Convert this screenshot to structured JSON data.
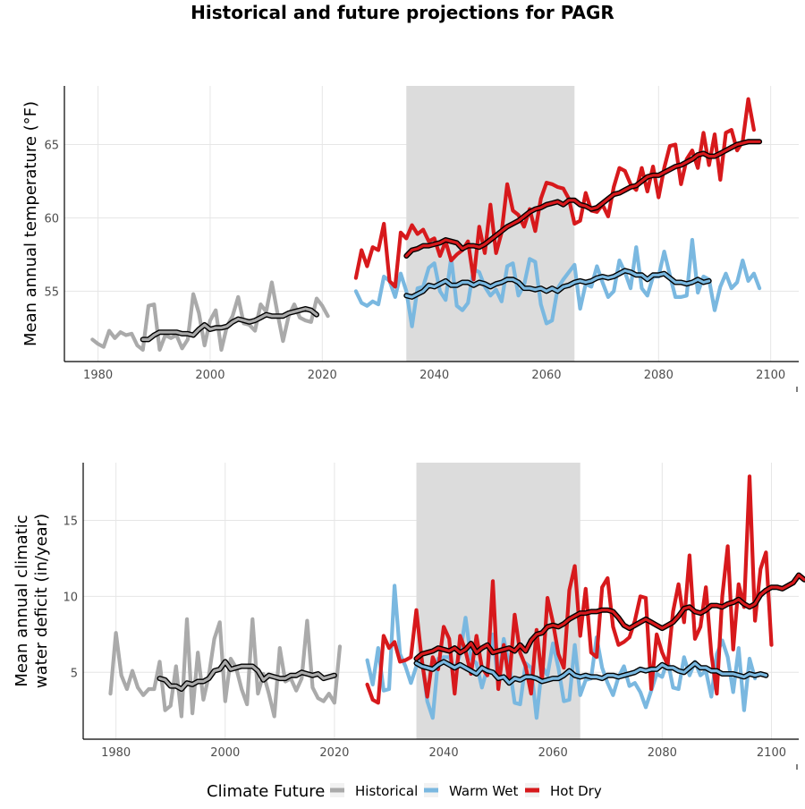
{
  "title": "Historical and future projections for PAGR",
  "legend": {
    "title": "Climate Future",
    "items": [
      {
        "label": "Historical",
        "color": "#aaaaaa"
      },
      {
        "label": "Warm Wet",
        "color": "#7ab8e0"
      },
      {
        "label": "Hot Dry",
        "color": "#d7191c"
      }
    ]
  },
  "chart_data": [
    {
      "type": "line",
      "ylabel": "Mean annual temperature (°F)",
      "xlabel": "",
      "xlim": [
        1974,
        2105
      ],
      "ylim": [
        50.2,
        69.0
      ],
      "xticks": [
        1980,
        2000,
        2020,
        2040,
        2060,
        2080,
        2100
      ],
      "yticks": [
        55,
        60,
        65
      ],
      "shaded_period": [
        2035,
        2065
      ],
      "grid": true,
      "series": [
        {
          "name": "Historical",
          "color": "#aaaaaa",
          "x_start": 1979,
          "values": [
            51.7,
            51.4,
            51.2,
            52.3,
            51.8,
            52.2,
            52.0,
            52.1,
            51.3,
            51.0,
            54.0,
            54.1,
            51.0,
            52.0,
            51.8,
            52.0,
            51.1,
            51.7,
            54.8,
            53.5,
            51.3,
            53.0,
            53.7,
            51.0,
            52.6,
            53.3,
            54.6,
            52.8,
            52.7,
            52.3,
            54.1,
            53.6,
            55.6,
            53.5,
            51.6,
            53.3,
            54.1,
            53.2,
            53.0,
            52.9,
            54.5,
            54.0,
            53.3
          ],
          "smooth_x_start": 1988,
          "smooth": [
            51.7,
            51.7,
            52.0,
            52.2,
            52.2,
            52.2,
            52.2,
            52.1,
            52.1,
            52.0,
            52.4,
            52.7,
            52.4,
            52.5,
            52.5,
            52.6,
            52.9,
            53.1,
            53.0,
            52.9,
            53.0,
            53.2,
            53.4,
            53.3,
            53.3,
            53.3,
            53.5,
            53.6,
            53.7,
            53.8,
            53.7,
            53.4
          ]
        },
        {
          "name": "Warm Wet",
          "color": "#7ab8e0",
          "x_start": 2026,
          "values": [
            55.0,
            54.2,
            54.0,
            54.3,
            54.1,
            56.0,
            55.7,
            54.6,
            56.2,
            55.0,
            52.6,
            55.2,
            55.3,
            56.6,
            56.9,
            55.0,
            54.4,
            57.3,
            54.0,
            53.7,
            54.2,
            56.5,
            56.3,
            55.3,
            54.7,
            55.1,
            54.3,
            56.7,
            56.9,
            54.7,
            55.4,
            57.2,
            57.0,
            54.1,
            52.8,
            53.0,
            55.2,
            55.8,
            56.3,
            56.8,
            53.8,
            55.5,
            55.3,
            56.7,
            55.6,
            54.6,
            55.0,
            57.1,
            56.3,
            55.2,
            58.0,
            55.2,
            54.7,
            56.0,
            56.0,
            57.7,
            56.1,
            54.6,
            54.6,
            54.7,
            58.5,
            54.9,
            56.0,
            55.8,
            53.7,
            55.3,
            56.2,
            55.2,
            55.6,
            57.1,
            55.7,
            56.2,
            55.2
          ],
          "smooth_x_start": 2035,
          "smooth": [
            54.7,
            54.6,
            54.8,
            55.0,
            55.4,
            55.3,
            55.5,
            55.7,
            55.4,
            55.4,
            55.6,
            55.6,
            55.4,
            55.6,
            55.5,
            55.3,
            55.5,
            55.6,
            55.8,
            55.8,
            55.6,
            55.2,
            55.2,
            55.1,
            55.2,
            55.0,
            55.2,
            55.0,
            55.3,
            55.4,
            55.6,
            55.7,
            55.6,
            55.7,
            55.9,
            56.0,
            55.9,
            56.0,
            56.2,
            56.4,
            56.3,
            56.1,
            56.1,
            55.8,
            56.1,
            56.1,
            56.2,
            55.9,
            55.6,
            55.6,
            55.5,
            55.6,
            55.8,
            55.6,
            55.7
          ]
        },
        {
          "name": "Hot Dry",
          "color": "#d7191c",
          "x_start": 2026,
          "values": [
            55.9,
            57.8,
            56.7,
            58.0,
            57.8,
            59.6,
            55.7,
            55.3,
            59.0,
            58.6,
            59.5,
            58.9,
            59.2,
            58.4,
            58.6,
            57.4,
            58.4,
            57.1,
            57.5,
            57.8,
            58.4,
            55.8,
            59.4,
            57.6,
            60.9,
            57.6,
            59.0,
            62.3,
            60.5,
            60.2,
            59.4,
            60.6,
            59.1,
            61.3,
            62.4,
            62.3,
            62.1,
            62.0,
            61.3,
            59.6,
            59.8,
            61.7,
            60.5,
            60.4,
            60.9,
            60.1,
            62.1,
            63.4,
            63.2,
            62.3,
            61.9,
            63.4,
            61.8,
            63.5,
            61.4,
            63.4,
            64.9,
            65.0,
            62.3,
            64.0,
            64.6,
            63.4,
            65.8,
            63.6,
            65.7,
            62.6,
            65.8,
            66.0,
            64.6,
            65.2,
            68.1,
            66.0
          ],
          "smooth_x_start": 2035,
          "smooth": [
            57.4,
            57.8,
            57.9,
            58.1,
            58.1,
            58.2,
            58.3,
            58.5,
            58.4,
            58.3,
            57.9,
            58.1,
            58.1,
            58.0,
            58.2,
            58.5,
            58.8,
            59.1,
            59.4,
            59.6,
            59.8,
            60.1,
            60.4,
            60.6,
            60.7,
            60.9,
            61.0,
            61.1,
            60.9,
            61.2,
            61.2,
            60.9,
            60.8,
            60.6,
            60.7,
            61.0,
            61.3,
            61.6,
            61.7,
            61.9,
            62.1,
            62.2,
            62.5,
            62.8,
            62.9,
            62.9,
            63.1,
            63.3,
            63.5,
            63.6,
            63.8,
            64.0,
            64.3,
            64.4,
            64.2,
            64.2,
            64.4,
            64.6,
            64.8,
            65.0,
            65.1,
            65.2,
            65.2,
            65.2
          ]
        }
      ]
    },
    {
      "type": "line",
      "ylabel": "Mean annual climatic\nwater deficit (in/year)",
      "xlabel": "",
      "xlim": [
        1974,
        2105
      ],
      "ylim": [
        0.6,
        18.8
      ],
      "xticks": [
        1980,
        2000,
        2020,
        2040,
        2060,
        2080,
        2100
      ],
      "yticks": [
        5,
        10,
        15
      ],
      "shaded_period": [
        2035,
        2065
      ],
      "grid": true,
      "series": [
        {
          "name": "Historical",
          "color": "#aaaaaa",
          "x_start": 1979,
          "values": [
            3.6,
            7.6,
            4.8,
            3.9,
            5.1,
            4.0,
            3.5,
            3.9,
            3.9,
            5.7,
            2.5,
            2.8,
            5.4,
            2.1,
            8.5,
            2.3,
            6.3,
            3.2,
            4.8,
            7.2,
            8.3,
            3.1,
            5.9,
            5.3,
            3.9,
            2.9,
            8.5,
            3.6,
            4.9,
            3.6,
            2.1,
            6.6,
            4.4,
            4.6,
            3.8,
            4.6,
            8.4,
            4.0,
            3.3,
            3.1,
            3.6,
            3.0,
            6.7
          ],
          "smooth_x_start": 1988,
          "smooth": [
            4.6,
            4.5,
            4.1,
            4.1,
            3.9,
            4.3,
            4.2,
            4.4,
            4.4,
            4.6,
            5.1,
            5.2,
            5.7,
            5.2,
            5.3,
            5.4,
            5.4,
            5.4,
            5.1,
            4.5,
            4.8,
            4.7,
            4.6,
            4.6,
            4.8,
            4.8,
            5.0,
            4.9,
            4.8,
            4.9,
            4.6,
            4.7,
            4.8
          ]
        },
        {
          "name": "Warm Wet",
          "color": "#7ab8e0",
          "x_start": 2026,
          "values": [
            5.8,
            4.2,
            6.6,
            3.8,
            3.9,
            10.7,
            6.2,
            5.4,
            4.3,
            5.4,
            5.9,
            3.1,
            2.0,
            5.9,
            6.0,
            6.0,
            5.2,
            6.2,
            8.6,
            5.9,
            5.6,
            4.0,
            5.3,
            7.5,
            4.3,
            7.2,
            5.5,
            3.0,
            2.9,
            5.6,
            5.3,
            2.0,
            5.4,
            4.8,
            6.9,
            5.3,
            3.1,
            3.2,
            6.8,
            3.5,
            4.5,
            4.6,
            7.3,
            5.3,
            4.3,
            3.5,
            4.7,
            5.4,
            4.1,
            4.3,
            3.7,
            2.7,
            3.8,
            4.9,
            4.7,
            5.8,
            4.0,
            3.9,
            6.0,
            4.8,
            5.7,
            4.8,
            5.1,
            3.4,
            6.2,
            7.1,
            6.0,
            3.7,
            6.6,
            2.5,
            5.9,
            4.6
          ],
          "smooth_x_start": 2035,
          "smooth": [
            5.6,
            5.4,
            5.3,
            5.2,
            5.5,
            5.7,
            5.5,
            5.3,
            5.5,
            5.3,
            5.1,
            4.9,
            5.3,
            5.1,
            5.0,
            4.6,
            4.7,
            4.3,
            4.6,
            4.5,
            4.7,
            4.7,
            4.6,
            4.4,
            4.5,
            4.6,
            4.6,
            4.8,
            5.1,
            4.8,
            4.7,
            4.8,
            4.7,
            4.7,
            4.6,
            4.8,
            4.8,
            4.7,
            4.8,
            4.9,
            5.0,
            5.2,
            5.1,
            5.2,
            5.2,
            5.5,
            5.3,
            5.3,
            5.1,
            5.0,
            5.3,
            5.6,
            5.3,
            5.3,
            5.1,
            5.1,
            4.9,
            4.9,
            4.9,
            4.8,
            4.7,
            4.9,
            4.8,
            4.9,
            4.8
          ]
        },
        {
          "name": "Hot Dry",
          "color": "#d7191c",
          "x_start": 2026,
          "values": [
            4.2,
            3.2,
            3.0,
            7.4,
            6.6,
            7.0,
            5.7,
            5.8,
            6.0,
            9.1,
            5.8,
            3.4,
            6.0,
            5.2,
            8.0,
            7.2,
            3.6,
            7.4,
            6.4,
            4.9,
            7.4,
            5.3,
            4.8,
            11.0,
            3.9,
            6.8,
            4.4,
            8.8,
            6.3,
            5.4,
            3.6,
            7.8,
            4.5,
            9.9,
            8.3,
            6.2,
            5.3,
            10.4,
            12.0,
            7.4,
            10.5,
            6.3,
            6.0,
            10.6,
            11.2,
            8.0,
            6.8,
            7.0,
            7.3,
            8.4,
            10.0,
            9.9,
            3.9,
            7.5,
            6.3,
            5.5,
            9.0,
            10.8,
            8.3,
            12.7,
            7.2,
            8.0,
            10.6,
            6.2,
            3.6,
            10.0,
            13.3,
            6.5,
            10.8,
            9.3,
            17.9,
            8.4,
            11.8,
            12.9,
            6.8
          ],
          "smooth_x_start": 2035,
          "smooth": [
            5.9,
            6.2,
            6.3,
            6.4,
            6.6,
            6.5,
            6.4,
            6.6,
            6.3,
            6.5,
            6.9,
            6.3,
            6.6,
            6.8,
            6.3,
            6.4,
            6.5,
            6.6,
            6.4,
            6.8,
            6.4,
            7.1,
            7.5,
            7.6,
            8.0,
            8.1,
            8.0,
            8.2,
            8.5,
            8.7,
            8.9,
            8.9,
            9.0,
            9.0,
            9.1,
            9.1,
            9.0,
            8.6,
            8.1,
            7.9,
            8.1,
            8.3,
            8.5,
            8.3,
            8.1,
            7.9,
            8.1,
            8.3,
            8.7,
            9.2,
            9.3,
            9.0,
            8.9,
            9.1,
            9.4,
            9.4,
            9.3,
            9.5,
            9.6,
            9.8,
            9.5,
            9.3,
            9.5,
            10.1,
            10.4,
            10.6,
            10.6,
            10.5,
            10.7,
            10.9,
            11.4,
            11.1
          ]
        }
      ]
    }
  ]
}
